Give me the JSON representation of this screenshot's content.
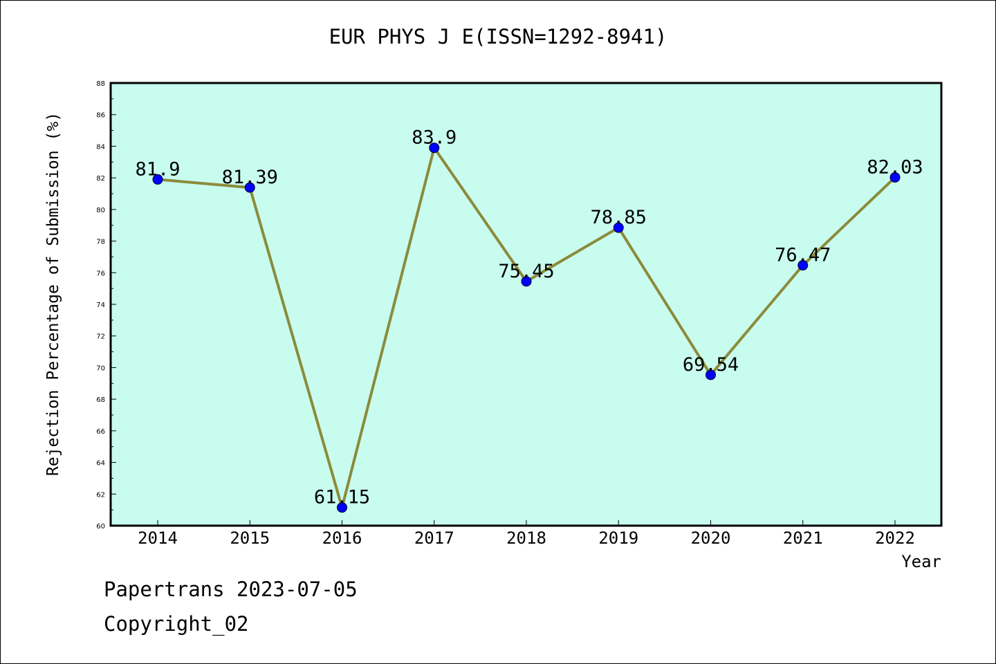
{
  "chart_data": {
    "type": "line",
    "title": "EUR PHYS J E(ISSN=1292-8941)",
    "xlabel": "Year",
    "ylabel": "Rejection Percentage of Submission (%)",
    "categories": [
      "2014",
      "2015",
      "2016",
      "2017",
      "2018",
      "2019",
      "2020",
      "2021",
      "2022"
    ],
    "values": [
      81.9,
      81.39,
      61.15,
      83.9,
      75.45,
      78.85,
      69.54,
      76.47,
      82.03
    ],
    "data_labels": [
      "81.9",
      "81.39",
      "61.15",
      "83.9",
      "75.45",
      "78.85",
      "69.54",
      "76.47",
      "82.03"
    ],
    "ylim": [
      60,
      88
    ],
    "yticks": [
      60,
      62,
      64,
      66,
      68,
      70,
      72,
      74,
      76,
      78,
      80,
      82,
      84,
      86,
      88
    ],
    "grid": false,
    "legend": "none",
    "colors": {
      "plot_background": "#c8fcee",
      "line": "#8b8b3a",
      "marker": "#0000ff"
    }
  },
  "footer": {
    "line1": "Papertrans 2023-07-05",
    "line2": "Copyright_02"
  }
}
